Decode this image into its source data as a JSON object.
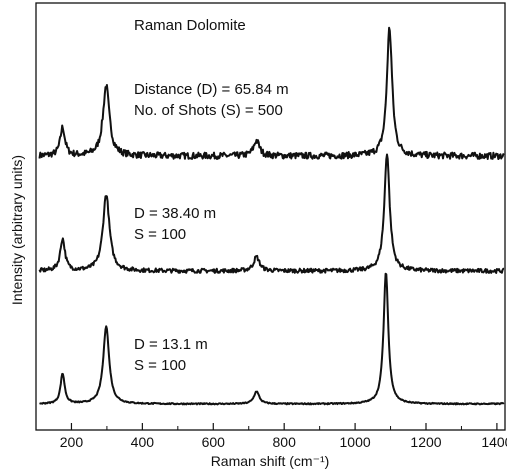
{
  "chart_data": {
    "type": "line",
    "title": "Raman Dolomite",
    "xlabel": "Raman shift (cm⁻¹)",
    "ylabel": "Intensity (arbitrary units)",
    "xlim": [
      100,
      1420
    ],
    "x_ticks": [
      200,
      400,
      600,
      800,
      1000,
      1200,
      1400
    ],
    "x_tick_labels": [
      "200",
      "400",
      "600",
      "800",
      "1000",
      "1200",
      "1400"
    ],
    "y_ticks": [],
    "grid": false,
    "line_color": "#111111",
    "series": [
      {
        "label_lines": [
          "Distance (D) = 65.84 m",
          "No. of Shots (S) = 500"
        ],
        "baseline": 2.0,
        "noise": 0.05,
        "peaks": [
          {
            "x": 175,
            "height": 0.22,
            "width": 8
          },
          {
            "x": 298,
            "height": 0.55,
            "width": 11
          },
          {
            "x": 722,
            "height": 0.12,
            "width": 10
          },
          {
            "x": 1097,
            "height": 1.0,
            "width": 9
          }
        ]
      },
      {
        "label_lines": [
          "D = 38.40 m",
          "S = 100"
        ],
        "baseline": 1.0,
        "noise": 0.035,
        "peaks": [
          {
            "x": 175,
            "height": 0.27,
            "width": 8
          },
          {
            "x": 298,
            "height": 0.65,
            "width": 11
          },
          {
            "x": 722,
            "height": 0.12,
            "width": 10
          },
          {
            "x": 1090,
            "height": 1.0,
            "width": 9
          }
        ]
      },
      {
        "label_lines": [
          "D = 13.1 m",
          "S = 100"
        ],
        "baseline": 0.0,
        "noise": 0.01,
        "peaks": [
          {
            "x": 175,
            "height": 0.24,
            "width": 7
          },
          {
            "x": 298,
            "height": 0.62,
            "width": 10
          },
          {
            "x": 722,
            "height": 0.1,
            "width": 9
          },
          {
            "x": 1087,
            "height": 1.05,
            "width": 8
          },
          {
            "x": 1438,
            "height": 0.05,
            "width": 6
          }
        ]
      }
    ]
  }
}
